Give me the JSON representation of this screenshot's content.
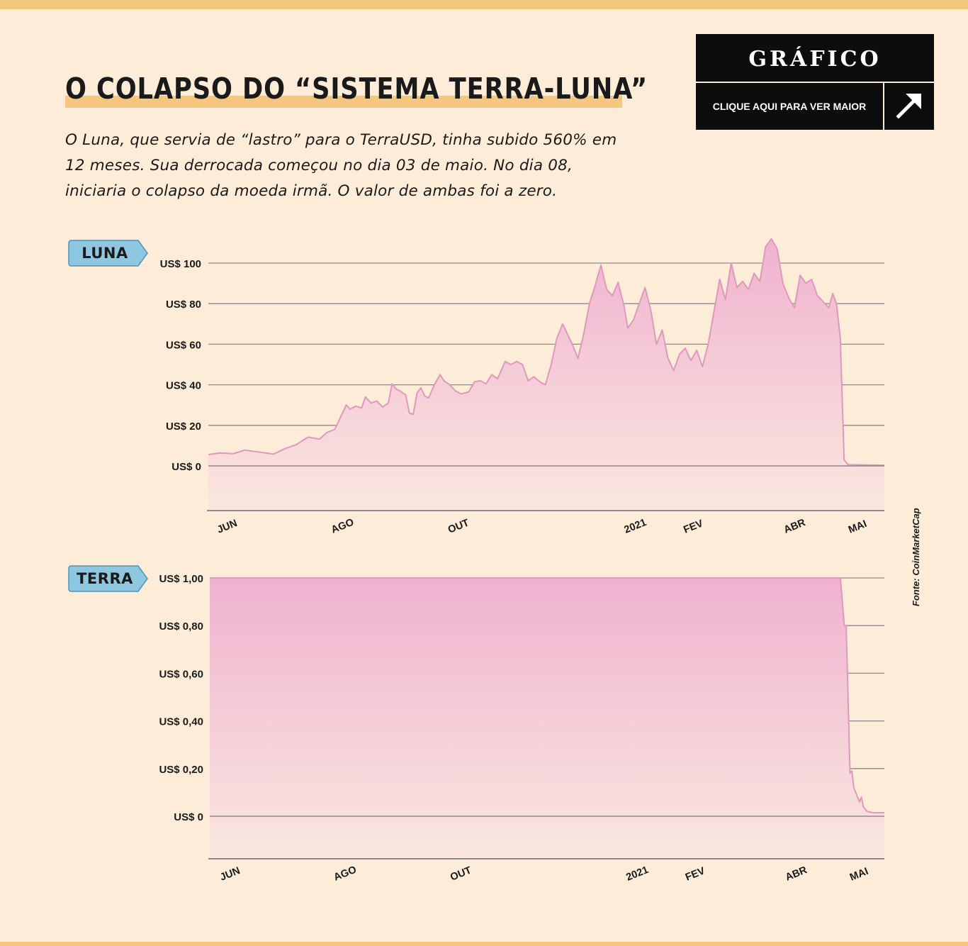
{
  "header": {
    "title": "O COLAPSO DO “SISTEMA TERRA-LUNA”",
    "subtitle": "O Luna, que servia de “lastro” para o TerraUSD, tinha subido 560% em 12 meses. Sua derrocada começou no dia 03 de maio. No dia 08, iniciaria o colapso da moeda irmã. O valor de ambas foi a zero."
  },
  "badge": {
    "label": "GRÁFICO",
    "link_label": "CLIQUE AQUI PARA VER MAIOR",
    "arrow_icon": "arrow-up-right-icon"
  },
  "source": "Fonte: CoinMarketCap",
  "colors": {
    "background": "#fdedd8",
    "accent": "#f5c77e",
    "tag": "#8fc6e0",
    "line": "#e198bd",
    "fill_top": "#efb2cf",
    "fill_bottom": "#fae7df"
  },
  "chart_data": [
    {
      "type": "area",
      "tag": "LUNA",
      "title": "",
      "xlabel": "",
      "ylabel": "",
      "ylim": [
        0,
        100
      ],
      "grid": true,
      "y_ticks": [
        {
          "value": 0,
          "label": "US$ 0"
        },
        {
          "value": 20,
          "label": "US$ 20"
        },
        {
          "value": 40,
          "label": "US$ 40"
        },
        {
          "value": 60,
          "label": "US$ 60"
        },
        {
          "value": 80,
          "label": "US$ 80"
        },
        {
          "value": 100,
          "label": "US$ 100"
        }
      ],
      "x_ticks": [
        {
          "date": "2020-06-01",
          "label": "JUN"
        },
        {
          "date": "2020-08-01",
          "label": "AGO"
        },
        {
          "date": "2020-10-01",
          "label": "OUT"
        },
        {
          "date": "2021-01-01",
          "label": "2021"
        },
        {
          "date": "2021-02-01",
          "label": "FEV"
        },
        {
          "date": "2021-04-01",
          "label": "ABR"
        },
        {
          "date": "2021-05-01",
          "label": "MAI"
        }
      ],
      "x_range": [
        "2020-05-28",
        "2021-05-16"
      ],
      "series": [
        {
          "values": [
            [
              "2020-05-28",
              5.6
            ],
            [
              "2020-06-03",
              6.4
            ],
            [
              "2020-06-10",
              6.0
            ],
            [
              "2020-06-16",
              7.8
            ],
            [
              "2020-06-24",
              6.8
            ],
            [
              "2020-07-01",
              5.8
            ],
            [
              "2020-07-07",
              8.5
            ],
            [
              "2020-07-13",
              10.5
            ],
            [
              "2020-07-19",
              14.2
            ],
            [
              "2020-07-25",
              13.2
            ],
            [
              "2020-07-29",
              16.5
            ],
            [
              "2020-08-02",
              18.0
            ],
            [
              "2020-08-05",
              24.0
            ],
            [
              "2020-08-08",
              30.0
            ],
            [
              "2020-08-10",
              28.0
            ],
            [
              "2020-08-13",
              29.5
            ],
            [
              "2020-08-16",
              28.5
            ],
            [
              "2020-08-18",
              34.0
            ],
            [
              "2020-08-21",
              31.0
            ],
            [
              "2020-08-24",
              32.0
            ],
            [
              "2020-08-27",
              29.0
            ],
            [
              "2020-08-30",
              31.0
            ],
            [
              "2020-09-01",
              40.5
            ],
            [
              "2020-09-03",
              38.0
            ],
            [
              "2020-09-05",
              37.0
            ],
            [
              "2020-09-08",
              35.0
            ],
            [
              "2020-09-10",
              26.0
            ],
            [
              "2020-09-12",
              25.5
            ],
            [
              "2020-09-14",
              36.0
            ],
            [
              "2020-09-16",
              38.5
            ],
            [
              "2020-09-18",
              34.5
            ],
            [
              "2020-09-20",
              33.5
            ],
            [
              "2020-09-23",
              40.0
            ],
            [
              "2020-09-26",
              45.0
            ],
            [
              "2020-09-28",
              42.0
            ],
            [
              "2020-10-01",
              40.0
            ],
            [
              "2020-10-04",
              37.0
            ],
            [
              "2020-10-07",
              35.5
            ],
            [
              "2020-10-11",
              36.5
            ],
            [
              "2020-10-14",
              41.5
            ],
            [
              "2020-10-17",
              42.0
            ],
            [
              "2020-10-20",
              40.5
            ],
            [
              "2020-10-23",
              45.0
            ],
            [
              "2020-10-26",
              43.0
            ],
            [
              "2020-10-30",
              51.5
            ],
            [
              "2020-11-02",
              50.0
            ],
            [
              "2020-11-05",
              51.5
            ],
            [
              "2020-11-08",
              50.0
            ],
            [
              "2020-11-11",
              42.0
            ],
            [
              "2020-11-14",
              44.0
            ],
            [
              "2020-11-17",
              41.5
            ],
            [
              "2020-11-20",
              40.0
            ],
            [
              "2020-11-23",
              50.0
            ],
            [
              "2020-11-26",
              63.0
            ],
            [
              "2020-11-29",
              70.0
            ],
            [
              "2020-12-01",
              66.0
            ],
            [
              "2020-12-04",
              60.0
            ],
            [
              "2020-12-07",
              53.0
            ],
            [
              "2020-12-10",
              65.0
            ],
            [
              "2020-12-13",
              80.0
            ],
            [
              "2020-12-16",
              89.0
            ],
            [
              "2020-12-19",
              99.0
            ],
            [
              "2020-12-22",
              87.0
            ],
            [
              "2020-12-25",
              84.0
            ],
            [
              "2020-12-28",
              90.5
            ],
            [
              "2020-12-31",
              79.0
            ],
            [
              "2021-01-02",
              68.0
            ],
            [
              "2021-01-05",
              72.0
            ],
            [
              "2021-01-08",
              80.0
            ],
            [
              "2021-01-11",
              88.0
            ],
            [
              "2021-01-14",
              77.0
            ],
            [
              "2021-01-17",
              60.0
            ],
            [
              "2021-01-20",
              67.0
            ],
            [
              "2021-01-23",
              53.0
            ],
            [
              "2021-01-26",
              47.0
            ],
            [
              "2021-01-29",
              55.0
            ],
            [
              "2021-02-01",
              58.0
            ],
            [
              "2021-02-04",
              52.0
            ],
            [
              "2021-02-07",
              57.0
            ],
            [
              "2021-02-10",
              49.0
            ],
            [
              "2021-02-13",
              60.0
            ],
            [
              "2021-02-16",
              76.0
            ],
            [
              "2021-02-19",
              92.0
            ],
            [
              "2021-02-22",
              82.0
            ],
            [
              "2021-02-25",
              100.0
            ],
            [
              "2021-02-28",
              88.0
            ],
            [
              "2021-03-03",
              91.0
            ],
            [
              "2021-03-06",
              87.0
            ],
            [
              "2021-03-09",
              95.0
            ],
            [
              "2021-03-12",
              91.0
            ],
            [
              "2021-03-15",
              108.0
            ],
            [
              "2021-03-18",
              112.0
            ],
            [
              "2021-03-21",
              107.0
            ],
            [
              "2021-03-24",
              90.0
            ],
            [
              "2021-03-27",
              83.0
            ],
            [
              "2021-03-30",
              78.0
            ],
            [
              "2021-04-02",
              94.0
            ],
            [
              "2021-04-05",
              90.0
            ],
            [
              "2021-04-08",
              92.0
            ],
            [
              "2021-04-11",
              84.0
            ],
            [
              "2021-04-14",
              81.0
            ],
            [
              "2021-04-17",
              78.0
            ],
            [
              "2021-04-19",
              85.0
            ],
            [
              "2021-04-21",
              80.0
            ],
            [
              "2021-04-23",
              63.0
            ],
            [
              "2021-04-25",
              3.0
            ],
            [
              "2021-04-27",
              0.6
            ],
            [
              "2021-05-16",
              0.3
            ]
          ]
        }
      ]
    },
    {
      "type": "area",
      "tag": "TERRA",
      "title": "",
      "xlabel": "",
      "ylabel": "",
      "ylim": [
        0,
        1
      ],
      "grid": true,
      "y_ticks": [
        {
          "value": 0,
          "label": "US$ 0"
        },
        {
          "value": 0.2,
          "label": "US$ 0,20"
        },
        {
          "value": 0.4,
          "label": "US$ 0,40"
        },
        {
          "value": 0.6,
          "label": "US$ 0,60"
        },
        {
          "value": 0.8,
          "label": "US$ 0,80"
        },
        {
          "value": 1,
          "label": "US$ 1,00"
        }
      ],
      "x_ticks": [
        {
          "date": "2020-06-01",
          "label": "JUN"
        },
        {
          "date": "2020-08-01",
          "label": "AGO"
        },
        {
          "date": "2020-10-01",
          "label": "OUT"
        },
        {
          "date": "2021-01-01",
          "label": "2021"
        },
        {
          "date": "2021-02-01",
          "label": "FEV"
        },
        {
          "date": "2021-04-01",
          "label": "ABR"
        },
        {
          "date": "2021-05-01",
          "label": "MAI"
        }
      ],
      "x_range": [
        "2020-05-28",
        "2021-05-16"
      ],
      "series": [
        {
          "values": [
            [
              "2020-05-28",
              1.0
            ],
            [
              "2020-08-01",
              1.0
            ],
            [
              "2020-11-01",
              1.0
            ],
            [
              "2021-01-01",
              1.0
            ],
            [
              "2021-04-01",
              1.0
            ],
            [
              "2021-04-23",
              1.0
            ],
            [
              "2021-04-25",
              0.8
            ],
            [
              "2021-04-26",
              0.8
            ],
            [
              "2021-04-28",
              0.18
            ],
            [
              "2021-04-29",
              0.19
            ],
            [
              "2021-04-30",
              0.12
            ],
            [
              "2021-05-02",
              0.08
            ],
            [
              "2021-05-03",
              0.06
            ],
            [
              "2021-05-04",
              0.08
            ],
            [
              "2021-05-05",
              0.04
            ],
            [
              "2021-05-07",
              0.02
            ],
            [
              "2021-05-10",
              0.015
            ],
            [
              "2021-05-16",
              0.015
            ]
          ]
        }
      ]
    }
  ]
}
